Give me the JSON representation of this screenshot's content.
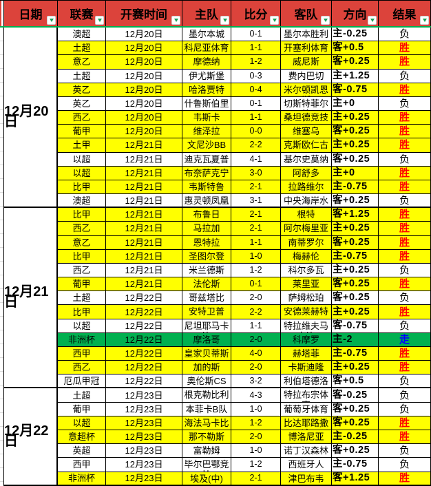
{
  "columns": [
    {
      "key": "date",
      "label": "日期"
    },
    {
      "key": "league",
      "label": "联赛"
    },
    {
      "key": "kickoff",
      "label": "开赛时间"
    },
    {
      "key": "home",
      "label": "主队"
    },
    {
      "key": "score",
      "label": "比分"
    },
    {
      "key": "away",
      "label": "客队"
    },
    {
      "key": "direction",
      "label": "方向"
    },
    {
      "key": "result",
      "label": "结果"
    }
  ],
  "colors": {
    "header_bg": "#DC433B",
    "header_text": "#000000",
    "win_row_bg": "#FFFF00",
    "void_row_bg": "#00B050",
    "loss_row_bg": "#FFFFFF",
    "win_text": "#FF0000",
    "void_text": "#0000FF",
    "loss_text": "#000000",
    "freeze_line": "#00B050",
    "filter_arrow": "#18A05A"
  },
  "sections": [
    {
      "date": "12月20日",
      "rows": [
        {
          "league": "澳超",
          "time": "12月20日",
          "home": "墨尔本城",
          "score": "0-1",
          "away": "墨尔本胜利",
          "direction": "主-0.25",
          "result": "负",
          "tone": "loss"
        },
        {
          "league": "土超",
          "time": "12月20日",
          "home": "科尼亚体育",
          "score": "1-1",
          "away": "开塞利体育",
          "direction": "客+0.5",
          "result": "胜",
          "tone": "win"
        },
        {
          "league": "意乙",
          "time": "12月20日",
          "home": "摩德纳",
          "score": "1-2",
          "away": "威尼斯",
          "direction": "客+0.25",
          "result": "胜",
          "tone": "win"
        },
        {
          "league": "土超",
          "time": "12月20日",
          "home": "伊尤斯堡",
          "score": "0-3",
          "away": "费内巴切",
          "direction": "主+1.25",
          "result": "负",
          "tone": "loss"
        },
        {
          "league": "英乙",
          "time": "12月20日",
          "home": "哈洛贾特",
          "score": "0-4",
          "away": "米尔顿凯恩斯",
          "direction": "客-0.75",
          "result": "胜",
          "tone": "win"
        },
        {
          "league": "英乙",
          "time": "12月20日",
          "home": "什鲁斯伯里",
          "score": "0-1",
          "away": "切斯特菲尔德",
          "direction": "主+0",
          "result": "负",
          "tone": "loss"
        },
        {
          "league": "西乙",
          "time": "12月20日",
          "home": "韦斯卡",
          "score": "1-1",
          "away": "桑坦德竞技",
          "direction": "主+0.25",
          "result": "胜",
          "tone": "win"
        },
        {
          "league": "葡甲",
          "time": "12月20日",
          "home": "维泽拉",
          "score": "0-0",
          "away": "维塞乌",
          "direction": "客+0.25",
          "result": "胜",
          "tone": "win"
        },
        {
          "league": "土甲",
          "time": "12月21日",
          "home": "文尼沙BB",
          "score": "2-2",
          "away": "克斯欧仁古",
          "direction": "主+0.25",
          "result": "胜",
          "tone": "win"
        },
        {
          "league": "以超",
          "time": "12月21日",
          "home": "迪克瓦夏普",
          "score": "4-1",
          "away": "基尔史莫纳",
          "direction": "客+0.25",
          "result": "负",
          "tone": "loss"
        },
        {
          "league": "以超",
          "time": "12月21日",
          "home": "布奈萨克宁",
          "score": "3-0",
          "away": "阿舒多",
          "direction": "主+0",
          "result": "胜",
          "tone": "win"
        },
        {
          "league": "比甲",
          "time": "12月21日",
          "home": "韦斯特鲁",
          "score": "2-1",
          "away": "拉路维尔",
          "direction": "主-0.75",
          "result": "胜",
          "tone": "win"
        },
        {
          "league": "澳超",
          "time": "12月21日",
          "home": "惠灵顿凤凰",
          "score": "3-1",
          "away": "中央海岸水手",
          "direction": "客+0.25",
          "result": "负",
          "tone": "loss"
        }
      ]
    },
    {
      "date": "12月21日",
      "rows": [
        {
          "league": "比甲",
          "time": "12月21日",
          "home": "布鲁日",
          "score": "2-1",
          "away": "根特",
          "direction": "客+1.25",
          "result": "胜",
          "tone": "win"
        },
        {
          "league": "西乙",
          "time": "12月21日",
          "home": "马拉加",
          "score": "2-1",
          "away": "阿尔梅里亚",
          "direction": "主+0.25",
          "result": "胜",
          "tone": "win"
        },
        {
          "league": "意乙",
          "time": "12月21日",
          "home": "恩特拉",
          "score": "1-1",
          "away": "南蒂罗尔",
          "direction": "客+0.25",
          "result": "胜",
          "tone": "win"
        },
        {
          "league": "比甲",
          "time": "12月21日",
          "home": "圣图尔登",
          "score": "1-0",
          "away": "梅赫伦",
          "direction": "主-0.75",
          "result": "胜",
          "tone": "win"
        },
        {
          "league": "西乙",
          "time": "12月21日",
          "home": "米兰德斯",
          "score": "1-2",
          "away": "科尔多瓦",
          "direction": "主+0.25",
          "result": "负",
          "tone": "loss"
        },
        {
          "league": "葡甲",
          "time": "12月21日",
          "home": "法伦斯",
          "score": "0-1",
          "away": "莱里亚",
          "direction": "客+0.25",
          "result": "胜",
          "tone": "win"
        },
        {
          "league": "土超",
          "time": "12月22日",
          "home": "哥兹塔比",
          "score": "2-0",
          "away": "萨姆松珀",
          "direction": "客+0.25",
          "result": "负",
          "tone": "loss"
        },
        {
          "league": "比甲",
          "time": "12月22日",
          "home": "安特卫普",
          "score": "2-2",
          "away": "安德莱赫特",
          "direction": "主+0.25",
          "result": "胜",
          "tone": "win"
        },
        {
          "league": "以超",
          "time": "12月22日",
          "home": "尼坦耶马卡比",
          "score": "1-1",
          "away": "特拉维夫马卡比",
          "direction": "客-0.75",
          "result": "负",
          "tone": "loss"
        },
        {
          "league": "非洲杯",
          "time": "12月22日",
          "home": "摩洛哥",
          "score": "2-0",
          "away": "科摩罗",
          "direction": "主-2",
          "result": "走",
          "tone": "void"
        },
        {
          "league": "西甲",
          "time": "12月22日",
          "home": "皇家贝蒂斯",
          "score": "4-0",
          "away": "赫塔菲",
          "direction": "主-0.75",
          "result": "胜",
          "tone": "win"
        },
        {
          "league": "西乙",
          "time": "12月22日",
          "home": "加的斯",
          "score": "2-0",
          "away": "卡斯迪隆",
          "direction": "主+0.25",
          "result": "胜",
          "tone": "win"
        },
        {
          "league": "厄瓜甲冠",
          "time": "12月22日",
          "home": "奥伦斯CS",
          "score": "3-2",
          "away": "利伯塔德洛",
          "direction": "客+0.5",
          "result": "负",
          "tone": "loss"
        }
      ]
    },
    {
      "date": "12月22日",
      "rows": [
        {
          "league": "土超",
          "time": "12月23日",
          "home": "根克勒比利",
          "score": "4-3",
          "away": "特拉布宗体育",
          "direction": "客-0.25",
          "result": "负",
          "tone": "loss"
        },
        {
          "league": "葡甲",
          "time": "12月23日",
          "home": "本菲卡B队",
          "score": "1-0",
          "away": "葡萄牙体育B",
          "direction": "客+0.25",
          "result": "负",
          "tone": "loss"
        },
        {
          "league": "以超",
          "time": "12月23日",
          "home": "海法马卡比",
          "score": "1-2",
          "away": "比达耶路撒冷",
          "direction": "客+0.25",
          "result": "胜",
          "tone": "win"
        },
        {
          "league": "意超杯",
          "time": "12月23日",
          "home": "那不勒斯",
          "score": "2-0",
          "away": "博洛尼亚",
          "direction": "主-0.25",
          "result": "胜",
          "tone": "win"
        },
        {
          "league": "英超",
          "time": "12月23日",
          "home": "富勒姆",
          "score": "1-0",
          "away": "诺丁汉森林",
          "direction": "客+0.25",
          "result": "负",
          "tone": "loss"
        },
        {
          "league": "西甲",
          "time": "12月23日",
          "home": "毕尔巴鄂竞技",
          "score": "1-2",
          "away": "西班牙人",
          "direction": "主-0.75",
          "result": "负",
          "tone": "loss"
        },
        {
          "league": "非洲杯",
          "time": "12月23日",
          "home": "埃及(中)",
          "score": "2-1",
          "away": "津巴布韦",
          "direction": "客+1.25",
          "result": "胜",
          "tone": "win"
        }
      ]
    }
  ]
}
